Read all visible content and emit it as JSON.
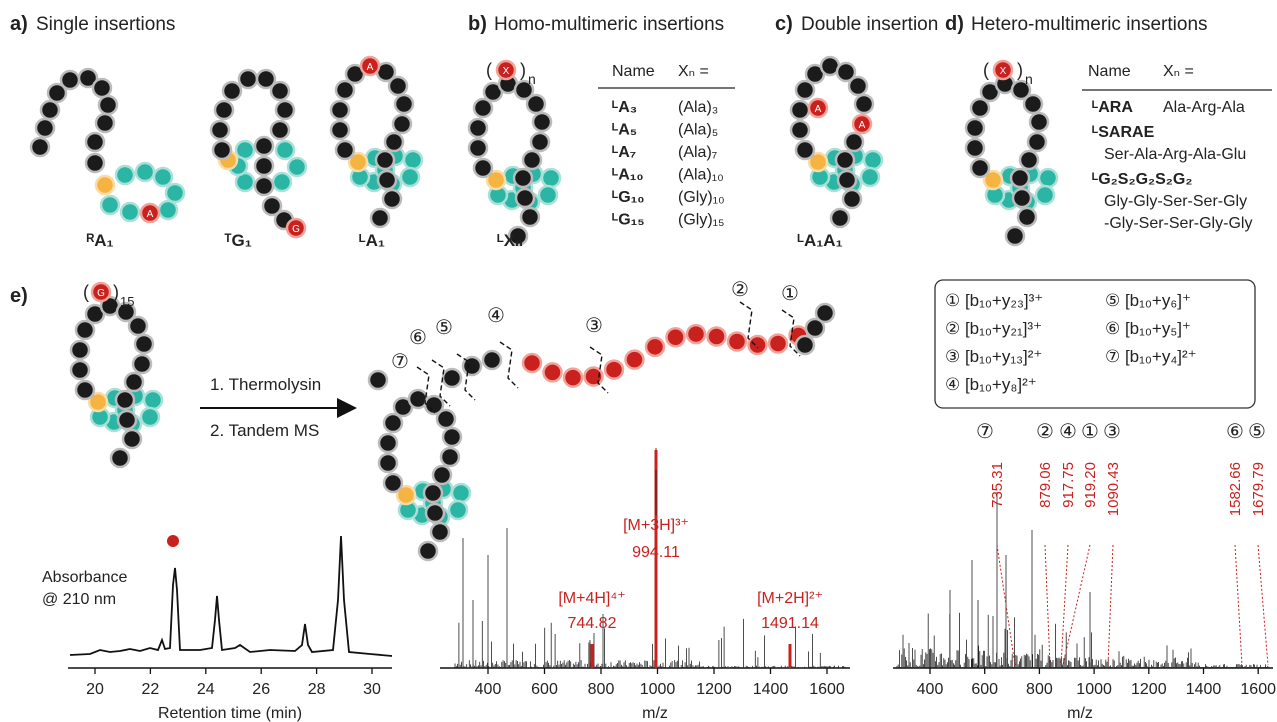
{
  "panels": {
    "a": {
      "label": "a)",
      "title": "Single insertions",
      "names": [
        "ᴿA₁",
        "ᵀG₁",
        "ᴸA₁"
      ],
      "residues": [
        "A",
        "G",
        "A"
      ]
    },
    "b": {
      "label": "b)",
      "title": "Homo-multimeric insertions",
      "brackets": [
        "(",
        ")"
      ],
      "variable": "X",
      "subscript": "n",
      "name": "ᴸXₙ",
      "table": {
        "header": [
          "Name",
          "Xₙ ="
        ],
        "rows": [
          [
            "ᴸA₃",
            "(Ala)₃"
          ],
          [
            "ᴸA₅",
            "(Ala)₅"
          ],
          [
            "ᴸA₇",
            "(Ala)₇"
          ],
          [
            "ᴸA₁₀",
            "(Ala)₁₀"
          ],
          [
            "ᴸG₁₀",
            "(Gly)₁₀"
          ],
          [
            "ᴸG₁₅",
            "(Gly)₁₅"
          ]
        ]
      }
    },
    "c": {
      "label": "c)",
      "title": "Double insertion",
      "residue": "A",
      "name": "ᴸA₁A₁"
    },
    "d": {
      "label": "d)",
      "title": "Hetero-multimeric insertions",
      "brackets": [
        "(",
        ")"
      ],
      "variable": "X",
      "subscript": "n",
      "table": {
        "header": [
          "Name",
          "Xₙ ="
        ],
        "rows": [
          [
            "ᴸARA",
            [
              "Ala-Arg-Ala"
            ]
          ],
          [
            "ᴸSARAE",
            [
              "Ser-Ala-Arg-Ala-Glu"
            ]
          ],
          [
            "ᴸG₂S₂G₂S₂G₂",
            [
              "Gly-Gly-Ser-Ser-Gly",
              "-Gly-Ser-Ser-Gly-Gly"
            ]
          ]
        ]
      }
    },
    "e": {
      "label": "e)",
      "brackets": [
        "(",
        ")"
      ],
      "residue": "G",
      "repeat": "15",
      "steps": [
        "1. Thermolysin",
        "2. Tandem MS"
      ],
      "cleavage_sites": [
        "①",
        "②",
        "③",
        "④",
        "⑤",
        "⑥",
        "⑦"
      ],
      "legend": [
        "① [b₁₀+y₂₃]³⁺",
        "② [b₁₀+y₂₁]³⁺",
        "③ [b₁₀+y₁₃]²⁺",
        "④ [b₁₀+y₈]²⁺",
        "⑤ [b₁₀+y₆]⁺",
        "⑥ [b₁₀+y₅]⁺",
        "⑦ [b₁₀+y₄]²⁺"
      ],
      "chromatogram": {
        "ylabel": [
          "Absorbance",
          "@ 210 nm"
        ],
        "xlabel": "Retention time (min)",
        "xticks": [
          "20",
          "22",
          "24",
          "26",
          "28",
          "30"
        ]
      },
      "ms1": {
        "xlabel": "m/z",
        "xticks": [
          "400",
          "600",
          "800",
          "1000",
          "1200",
          "1400",
          "1600"
        ],
        "peaks": [
          {
            "ion": "[M+3H]³⁺",
            "mz": "994.11"
          },
          {
            "ion": "[M+4H]⁴⁺",
            "mz": "744.82"
          },
          {
            "ion": "[M+2H]²⁺",
            "mz": "1491.14"
          }
        ]
      },
      "ms2": {
        "xlabel": "m/z",
        "xticks": [
          "400",
          "600",
          "800",
          "1000",
          "1200",
          "1400",
          "1600"
        ],
        "peaks": [
          {
            "site": "⑦",
            "mz": "735.31"
          },
          {
            "site": "②",
            "mz": "879.06"
          },
          {
            "site": "④",
            "mz": "917.75"
          },
          {
            "site": "①",
            "mz": "919.20"
          },
          {
            "site": "③",
            "mz": "1090.43"
          },
          {
            "site": "⑥",
            "mz": "1582.66"
          },
          {
            "site": "⑤",
            "mz": "1679.79"
          }
        ]
      }
    }
  }
}
